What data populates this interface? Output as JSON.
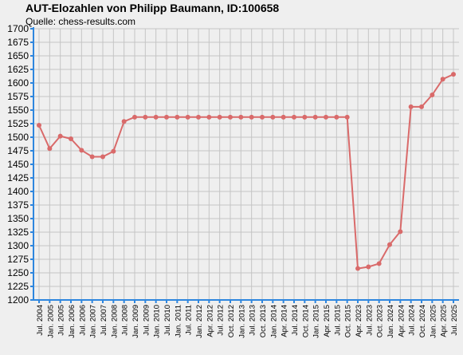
{
  "chart_data": {
    "type": "line",
    "title": "AUT-Elozahlen von Philipp Baumann, ID:100658",
    "subtitle": "Quelle: chess-results.com",
    "xlabel": "",
    "ylabel": "",
    "ylim": [
      1200,
      1700
    ],
    "ytick_step": 25,
    "grid": true,
    "colors": {
      "line": "#d96a6a",
      "axis": "#2e86de",
      "grid": "#c4c4c4",
      "background": "#efefef"
    },
    "categories": [
      "Jul. 2004",
      "Jan. 2005",
      "Jul. 2005",
      "Jan. 2006",
      "Jul. 2006",
      "Jan. 2007",
      "Jul. 2007",
      "Jan. 2008",
      "Jul. 2008",
      "Jan. 2009",
      "Jul. 2009",
      "Jan. 2010",
      "Jul. 2010",
      "Jan. 2011",
      "Jul. 2011",
      "Jan. 2012",
      "Apr. 2012",
      "Jul. 2012",
      "Oct. 2012",
      "Jan. 2013",
      "Jul. 2013",
      "Oct. 2013",
      "Jan. 2014",
      "Apr. 2014",
      "Jul. 2014",
      "Oct. 2014",
      "Jan. 2015",
      "Apr. 2015",
      "Jul. 2015",
      "Oct. 2015",
      "Apr. 2023",
      "Jul. 2023",
      "Oct. 2023",
      "Jan. 2024",
      "Apr. 2024",
      "Jul. 2024",
      "Oct. 2024",
      "Jan. 2025",
      "Apr. 2025",
      "Jul. 2025"
    ],
    "series": [
      {
        "values": [
          1522,
          1479,
          1502,
          1497,
          1476,
          1464,
          1464,
          1474,
          1529,
          1537,
          1537,
          1537,
          1537,
          1537,
          1537,
          1537,
          1537,
          1537,
          1537,
          1537,
          1537,
          1537,
          1537,
          1537,
          1537,
          1537,
          1537,
          1537,
          1537,
          1537,
          1258,
          1261,
          1267,
          1302,
          1326,
          1556,
          1556,
          1578,
          1607,
          1616
        ]
      }
    ]
  }
}
